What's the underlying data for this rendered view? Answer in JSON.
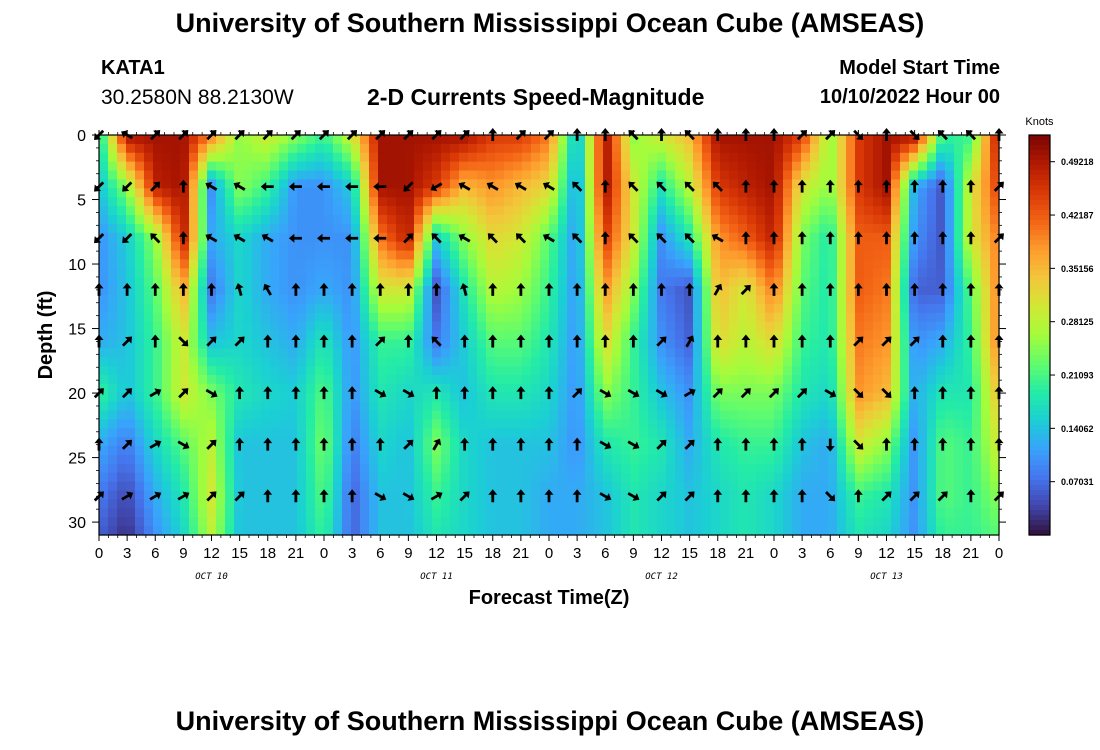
{
  "header": {
    "title": "University of Southern Mississippi Ocean Cube (AMSEAS)",
    "station_id": "KATA1",
    "station_coords": "30.2580N  88.2130W",
    "subtitle": "2-D Currents Speed-Magnitude",
    "model_start_label": "Model Start Time",
    "model_start_value": "10/10/2022 Hour 00"
  },
  "footer": {
    "title": "University of Southern Mississippi Ocean Cube (AMSEAS)"
  },
  "colors": {
    "colormap": [
      "#30123b",
      "#4145ab",
      "#4675ed",
      "#39a2fc",
      "#1bcfd4",
      "#24eca6",
      "#61fc6c",
      "#a4fc3b",
      "#d1e834",
      "#f3c63a",
      "#fe9b2d",
      "#f36315",
      "#d93806",
      "#b11901",
      "#7a0403"
    ],
    "arrow": "#000000"
  },
  "chart_data": {
    "type": "heatmap",
    "xlabel": "Forecast Time(Z)",
    "ylabel": "Depth (ft)",
    "colorbar_label": "Knots",
    "x_range_hours": [
      0,
      96
    ],
    "x_tick_step_hours": 3,
    "x_tick_labels": [
      "0",
      "3",
      "6",
      "9",
      "12",
      "15",
      "18",
      "21",
      "0",
      "3",
      "6",
      "9",
      "12",
      "15",
      "18",
      "21",
      "0",
      "3",
      "6",
      "9",
      "12",
      "15",
      "18",
      "21",
      "0",
      "3",
      "6",
      "9",
      "12",
      "15",
      "18",
      "21",
      "0"
    ],
    "date_labels": [
      {
        "text": "OCT 10",
        "hour": 12
      },
      {
        "text": "OCT 11",
        "hour": 36
      },
      {
        "text": "OCT 12",
        "hour": 60
      },
      {
        "text": "OCT 13",
        "hour": 84
      }
    ],
    "y_range_ft": [
      0,
      31
    ],
    "y_ticks": [
      0,
      5,
      10,
      15,
      20,
      25,
      30
    ],
    "colorbar_range_knots": [
      0,
      0.5274
    ],
    "colorbar_ticks": [
      "0.07031",
      "0.14062",
      "0.21093",
      "0.28125",
      "0.35156",
      "0.42187",
      "0.49218"
    ],
    "depths_ft": [
      0,
      4,
      8,
      12,
      16,
      20,
      24,
      28,
      31
    ],
    "speed_knots": [
      [
        0.16,
        0.5,
        0.5,
        0.5,
        0.4,
        0.25,
        0.3,
        0.25,
        0.2,
        0.3,
        0.5,
        0.5,
        0.5,
        0.5,
        0.45,
        0.45,
        0.4,
        0.12,
        0.5,
        0.25,
        0.3,
        0.35,
        0.5,
        0.5,
        0.5,
        0.45,
        0.25,
        0.45,
        0.5,
        0.5,
        0.2,
        0.2,
        0.5
      ],
      [
        0.14,
        0.25,
        0.48,
        0.5,
        0.1,
        0.25,
        0.2,
        0.1,
        0.1,
        0.15,
        0.5,
        0.5,
        0.45,
        0.35,
        0.38,
        0.35,
        0.32,
        0.1,
        0.5,
        0.3,
        0.18,
        0.28,
        0.45,
        0.48,
        0.5,
        0.3,
        0.25,
        0.45,
        0.5,
        0.12,
        0.05,
        0.3,
        0.45
      ],
      [
        0.1,
        0.15,
        0.25,
        0.48,
        0.12,
        0.16,
        0.12,
        0.1,
        0.1,
        0.1,
        0.4,
        0.48,
        0.15,
        0.25,
        0.32,
        0.3,
        0.22,
        0.1,
        0.45,
        0.3,
        0.1,
        0.18,
        0.38,
        0.42,
        0.48,
        0.24,
        0.18,
        0.42,
        0.42,
        0.1,
        0.05,
        0.3,
        0.4
      ],
      [
        0.1,
        0.14,
        0.22,
        0.36,
        0.08,
        0.16,
        0.12,
        0.1,
        0.12,
        0.1,
        0.3,
        0.3,
        0.05,
        0.18,
        0.28,
        0.26,
        0.2,
        0.1,
        0.38,
        0.25,
        0.08,
        0.05,
        0.35,
        0.3,
        0.4,
        0.22,
        0.18,
        0.42,
        0.4,
        0.06,
        0.06,
        0.22,
        0.4
      ],
      [
        0.12,
        0.14,
        0.2,
        0.3,
        0.14,
        0.16,
        0.14,
        0.12,
        0.18,
        0.1,
        0.2,
        0.2,
        0.08,
        0.15,
        0.22,
        0.22,
        0.18,
        0.1,
        0.32,
        0.2,
        0.1,
        0.06,
        0.32,
        0.28,
        0.32,
        0.2,
        0.18,
        0.4,
        0.38,
        0.1,
        0.12,
        0.2,
        0.4
      ],
      [
        0.2,
        0.14,
        0.2,
        0.3,
        0.24,
        0.18,
        0.16,
        0.15,
        0.22,
        0.1,
        0.18,
        0.16,
        0.18,
        0.14,
        0.18,
        0.18,
        0.16,
        0.1,
        0.25,
        0.2,
        0.14,
        0.1,
        0.24,
        0.24,
        0.24,
        0.18,
        0.16,
        0.38,
        0.35,
        0.12,
        0.18,
        0.18,
        0.35
      ],
      [
        0.12,
        0.08,
        0.16,
        0.22,
        0.28,
        0.14,
        0.14,
        0.14,
        0.24,
        0.08,
        0.16,
        0.14,
        0.24,
        0.16,
        0.14,
        0.14,
        0.14,
        0.1,
        0.18,
        0.2,
        0.18,
        0.12,
        0.18,
        0.2,
        0.2,
        0.14,
        0.12,
        0.3,
        0.25,
        0.1,
        0.22,
        0.2,
        0.3
      ],
      [
        0.08,
        0.04,
        0.12,
        0.18,
        0.3,
        0.14,
        0.14,
        0.14,
        0.22,
        0.06,
        0.14,
        0.14,
        0.2,
        0.16,
        0.14,
        0.14,
        0.12,
        0.12,
        0.14,
        0.18,
        0.16,
        0.14,
        0.16,
        0.18,
        0.16,
        0.12,
        0.12,
        0.2,
        0.18,
        0.1,
        0.22,
        0.2,
        0.25
      ],
      [
        0.06,
        0.02,
        0.1,
        0.16,
        0.28,
        0.14,
        0.14,
        0.14,
        0.2,
        0.06,
        0.14,
        0.14,
        0.18,
        0.16,
        0.14,
        0.14,
        0.12,
        0.12,
        0.14,
        0.18,
        0.16,
        0.14,
        0.16,
        0.18,
        0.16,
        0.12,
        0.12,
        0.18,
        0.16,
        0.1,
        0.2,
        0.2,
        0.22
      ]
    ],
    "arrow_depths_ft": [
      0,
      4,
      8,
      12,
      16,
      20,
      24,
      28
    ],
    "arrow_direction_deg": [
      [
        225,
        300,
        45,
        45,
        45,
        45,
        45,
        45,
        45,
        45,
        45,
        45,
        45,
        45,
        0,
        45,
        45,
        0,
        0,
        315,
        0,
        315,
        0,
        0,
        0,
        45,
        45,
        135,
        0,
        135,
        315,
        315,
        0
      ],
      [
        225,
        225,
        45,
        0,
        300,
        300,
        270,
        270,
        270,
        270,
        270,
        225,
        240,
        300,
        300,
        300,
        300,
        315,
        0,
        315,
        315,
        315,
        315,
        0,
        0,
        0,
        0,
        0,
        0,
        0,
        0,
        0,
        45
      ],
      [
        225,
        225,
        315,
        0,
        300,
        300,
        300,
        270,
        270,
        270,
        270,
        45,
        315,
        300,
        315,
        315,
        300,
        315,
        0,
        315,
        315,
        315,
        300,
        0,
        0,
        0,
        0,
        0,
        0,
        0,
        0,
        0,
        45
      ],
      [
        0,
        0,
        0,
        0,
        0,
        345,
        330,
        0,
        0,
        0,
        0,
        0,
        0,
        345,
        0,
        0,
        0,
        0,
        0,
        0,
        0,
        0,
        30,
        45,
        0,
        0,
        0,
        0,
        0,
        0,
        0,
        0,
        0
      ],
      [
        0,
        45,
        0,
        135,
        45,
        45,
        0,
        0,
        0,
        0,
        45,
        0,
        315,
        0,
        0,
        0,
        0,
        0,
        0,
        0,
        45,
        30,
        0,
        0,
        0,
        0,
        0,
        45,
        45,
        45,
        0,
        0,
        0
      ],
      [
        45,
        45,
        60,
        45,
        120,
        0,
        0,
        0,
        0,
        0,
        120,
        120,
        0,
        0,
        0,
        0,
        0,
        45,
        120,
        120,
        120,
        60,
        45,
        45,
        45,
        45,
        120,
        135,
        135,
        0,
        0,
        0,
        0
      ],
      [
        0,
        45,
        60,
        120,
        45,
        0,
        0,
        0,
        0,
        0,
        0,
        45,
        30,
        0,
        0,
        0,
        0,
        0,
        120,
        120,
        45,
        45,
        0,
        0,
        0,
        0,
        180,
        135,
        0,
        0,
        0,
        0,
        0
      ],
      [
        45,
        60,
        60,
        60,
        45,
        45,
        0,
        0,
        0,
        0,
        120,
        120,
        60,
        45,
        0,
        0,
        0,
        0,
        120,
        120,
        45,
        45,
        0,
        0,
        0,
        0,
        135,
        0,
        45,
        45,
        45,
        0,
        45
      ]
    ]
  }
}
